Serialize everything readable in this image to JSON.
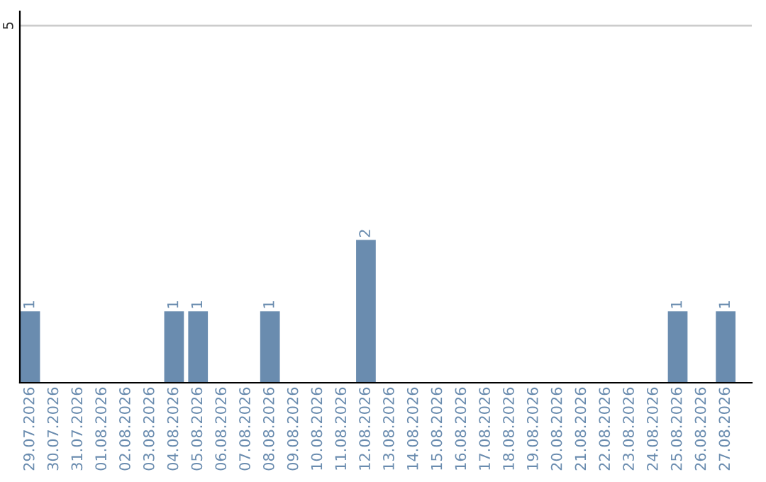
{
  "chart_data": {
    "type": "bar",
    "categories": [
      "29.07.2026",
      "30.07.2026",
      "31.07.2026",
      "01.08.2026",
      "02.08.2026",
      "03.08.2026",
      "04.08.2026",
      "05.08.2026",
      "06.08.2026",
      "07.08.2026",
      "08.08.2026",
      "09.08.2026",
      "10.08.2026",
      "11.08.2026",
      "12.08.2026",
      "13.08.2026",
      "14.08.2026",
      "15.08.2026",
      "16.08.2026",
      "17.08.2026",
      "18.08.2026",
      "19.08.2026",
      "20.08.2026",
      "21.08.2026",
      "22.08.2026",
      "23.08.2026",
      "24.08.2026",
      "25.08.2026",
      "26.08.2026",
      "27.08.2026"
    ],
    "values": [
      1,
      0,
      0,
      0,
      0,
      0,
      1,
      1,
      0,
      0,
      1,
      0,
      0,
      0,
      2,
      0,
      0,
      0,
      0,
      0,
      0,
      0,
      0,
      0,
      0,
      0,
      0,
      1,
      0,
      1
    ],
    "value_labels": [
      "1",
      null,
      null,
      null,
      null,
      null,
      "1",
      "1",
      null,
      null,
      "1",
      null,
      null,
      null,
      "2",
      null,
      null,
      null,
      null,
      null,
      null,
      null,
      null,
      null,
      null,
      null,
      null,
      "1",
      null,
      "1"
    ],
    "color": "#6a8caf",
    "ylim": [
      0,
      5.2
    ],
    "yticks": [
      5
    ],
    "grid": "y"
  }
}
